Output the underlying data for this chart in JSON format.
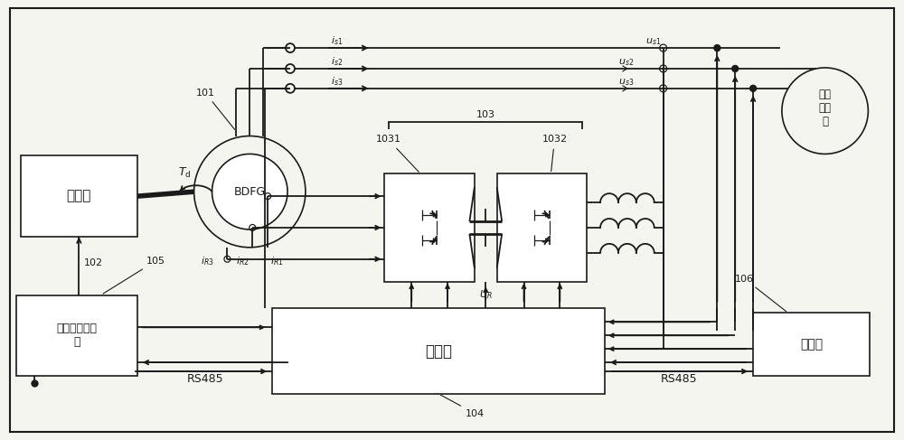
{
  "bg_color": "#f5f5f0",
  "line_color": "#1a1a1a",
  "text_color": "#1a1a1a",
  "figsize": [
    10.0,
    4.87
  ],
  "dpi": 100,
  "labels": {
    "diesel": "柴油机",
    "bdfg": "BDFG",
    "controller": "控制器",
    "governor": "柴油机调速系\n统",
    "upper_computer": "上位机",
    "grid": "电网\n或负\n载",
    "rs485_left": "RS485",
    "rs485_right": "RS485",
    "label_101": "101",
    "label_102": "102",
    "label_103": "103",
    "label_1031": "1031",
    "label_1032": "1032",
    "label_104": "104",
    "label_105": "105",
    "label_106": "106",
    "Td": "$T_{\\mathrm{d}}$",
    "is1": "$i_{s1}$",
    "is2": "$i_{s2}$",
    "is3": "$i_{s3}$",
    "iR1": "$i_{R1}$",
    "iR2": "$i_{R2}$",
    "iR3": "$i_{R3}$",
    "us1": "$u_{s1}$",
    "us2": "$u_{s2}$",
    "us3": "$u_{s3}$",
    "UR": "$U_{R}$"
  }
}
